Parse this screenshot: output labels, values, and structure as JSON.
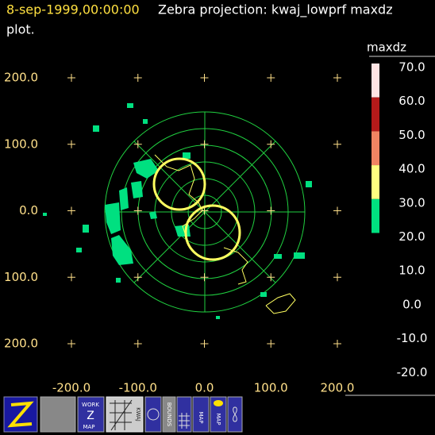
{
  "header": {
    "time": "8-sep-1999,00:00:00",
    "title": "Zebra projection: kwaj_lowprf maxdz",
    "title_cont": "plot."
  },
  "plot": {
    "x_labels": [
      "-200.0",
      "-100.0",
      "0.0",
      "100.0",
      "200.0"
    ],
    "y_labels": [
      "200.0",
      "100.0",
      "0.0",
      "100.0",
      "200.0"
    ]
  },
  "colorbar": {
    "name": "maxdz",
    "labels": [
      "70.0",
      "60.0",
      "50.0",
      "40.0",
      "30.0",
      "20.0",
      "10.0",
      "0.0",
      "-10.0",
      "-20.0"
    ],
    "colors": [
      "#ffe4e4",
      "#b41a1a",
      "#f08462",
      "#ffff80",
      "#00e080"
    ]
  },
  "toolbar": {
    "work_top": "WORK",
    "work_mid": "Z",
    "work_bottom": "MAP",
    "kwaj": "KWAJ",
    "bounds": "BOUNDS",
    "map1": "MAP",
    "map2": "MAP"
  }
}
